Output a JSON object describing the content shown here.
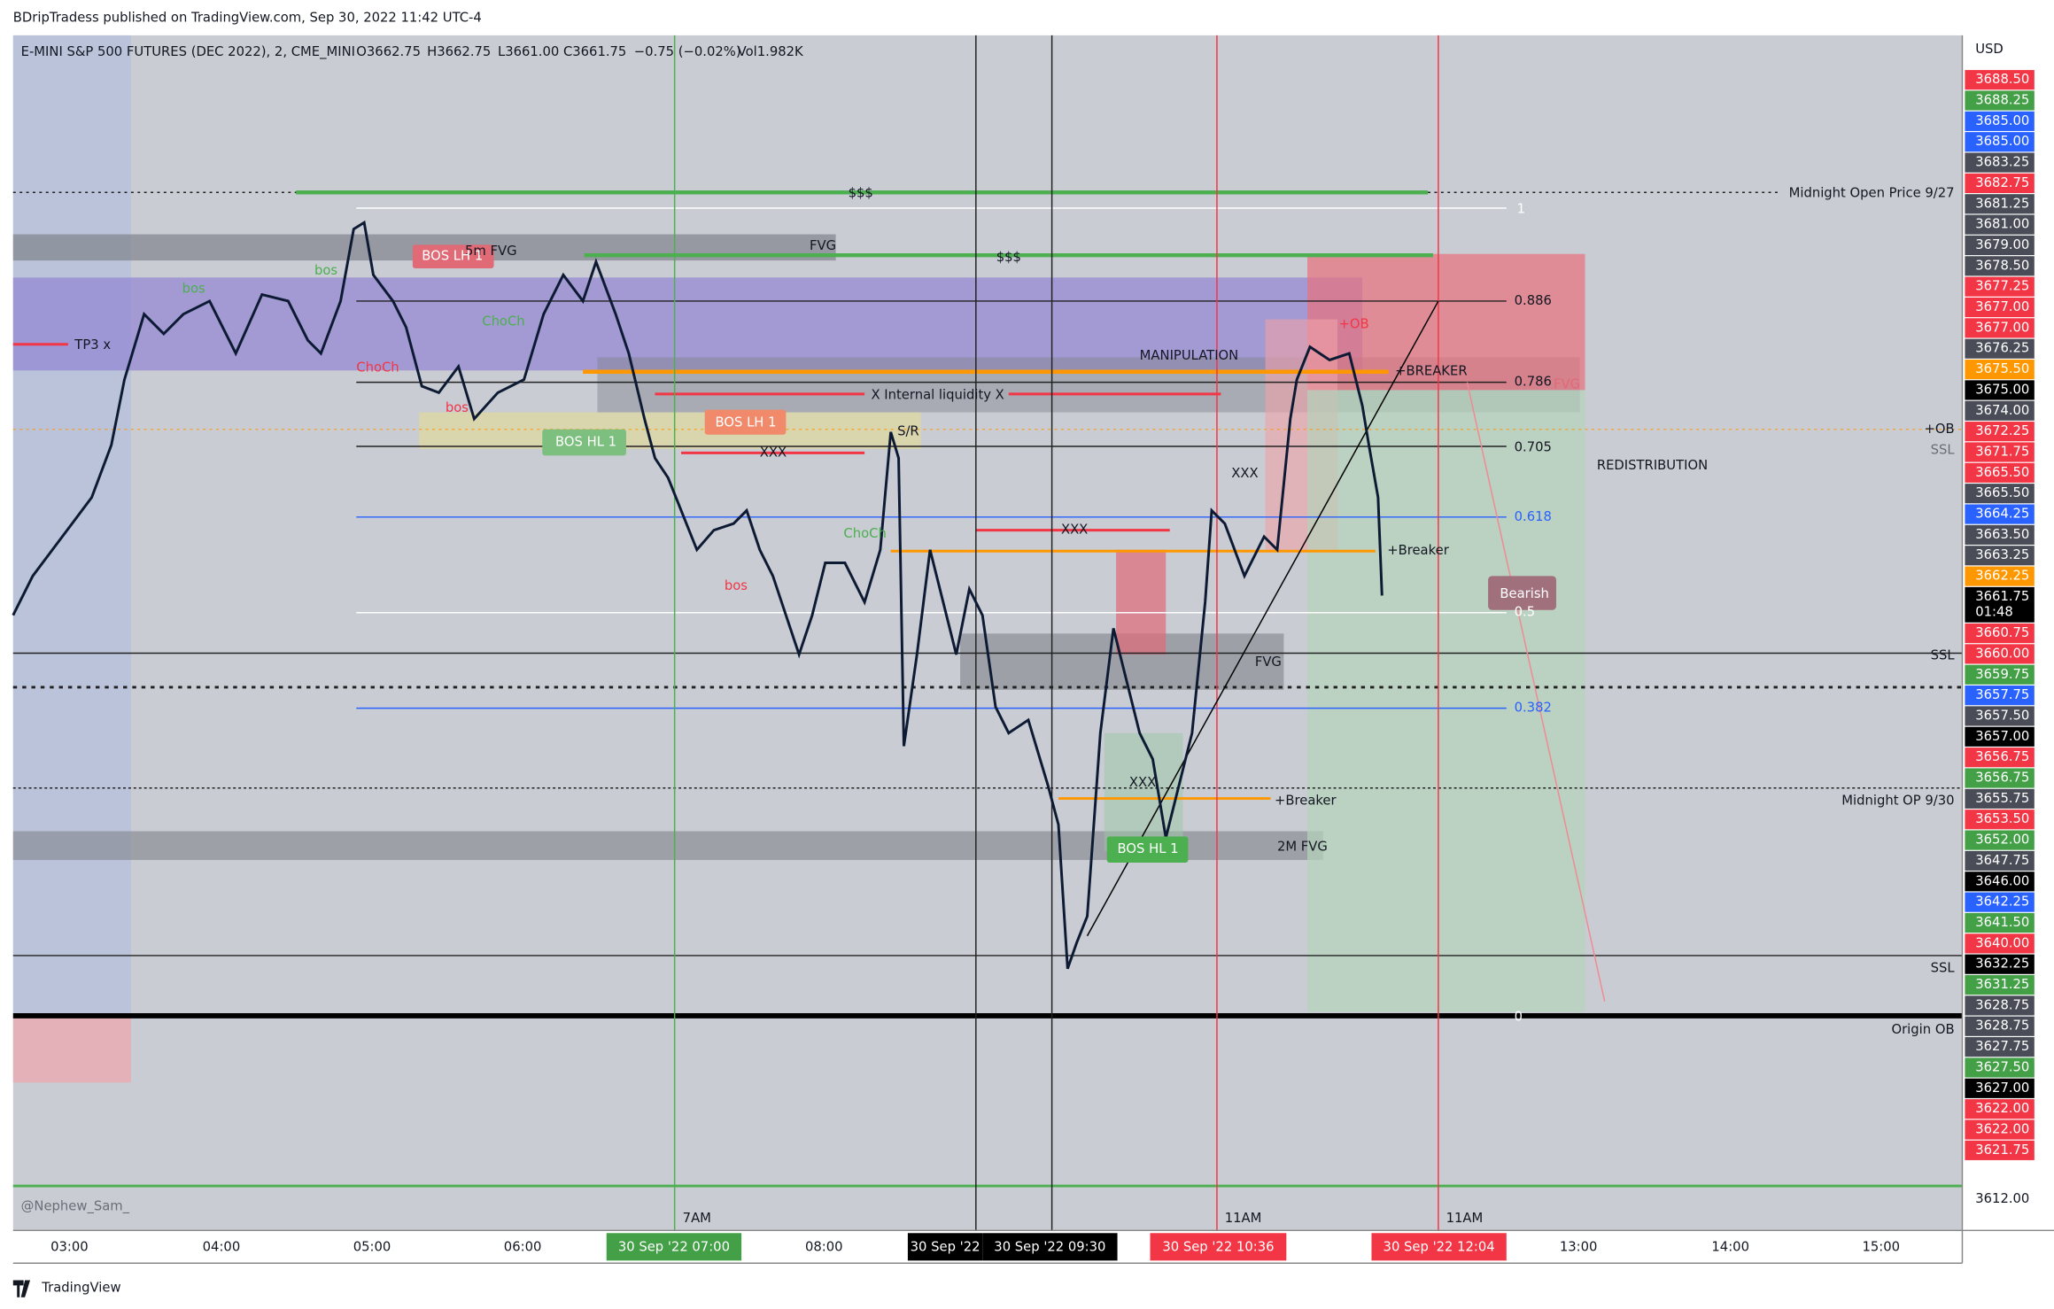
{
  "header": {
    "publisher": "BDripTradess published on TradingView.com, Sep 30, 2022 11:42 UTC-4"
  },
  "legend": {
    "symbol": "E-MINI S&P 500 FUTURES (DEC 2022), 2, CME_MINI",
    "open": "O3662.75",
    "high": "H3662.75",
    "low": "L3661.00",
    "close": "C3661.75",
    "change": "−0.75 (−0.02%)",
    "volume": "Vol1.982K"
  },
  "price_axis": {
    "currency": "USD",
    "countdown": "01:48",
    "bottom_label": "3612.00",
    "labels": [
      {
        "text": "3688.50",
        "color": "red"
      },
      {
        "text": "3688.25",
        "color": "green"
      },
      {
        "text": "3685.00",
        "color": "blue"
      },
      {
        "text": "3685.00",
        "color": "blue"
      },
      {
        "text": "3683.25",
        "color": "gray"
      },
      {
        "text": "3682.75",
        "color": "red"
      },
      {
        "text": "3681.25",
        "color": "gray"
      },
      {
        "text": "3681.00",
        "color": "gray"
      },
      {
        "text": "3679.00",
        "color": "gray"
      },
      {
        "text": "3678.50",
        "color": "gray"
      },
      {
        "text": "3677.25",
        "color": "red"
      },
      {
        "text": "3677.00",
        "color": "red"
      },
      {
        "text": "3677.00",
        "color": "red"
      },
      {
        "text": "3676.25",
        "color": "gray"
      },
      {
        "text": "3675.50",
        "color": "orange"
      },
      {
        "text": "3675.00",
        "color": "black"
      },
      {
        "text": "3674.00",
        "color": "gray"
      },
      {
        "text": "3672.25",
        "color": "red"
      },
      {
        "text": "3671.75",
        "color": "red"
      },
      {
        "text": "3665.50",
        "color": "red"
      },
      {
        "text": "3665.50",
        "color": "gray"
      },
      {
        "text": "3664.25",
        "color": "blue"
      },
      {
        "text": "3663.50",
        "color": "gray"
      },
      {
        "text": "3663.25",
        "color": "gray"
      },
      {
        "text": "3662.25",
        "color": "orange"
      },
      {
        "text": "3661.75",
        "color": "black"
      },
      {
        "text": "3660.75",
        "color": "red"
      },
      {
        "text": "3660.00",
        "color": "red"
      },
      {
        "text": "3659.75",
        "color": "green"
      },
      {
        "text": "3657.75",
        "color": "blue"
      },
      {
        "text": "3657.50",
        "color": "gray"
      },
      {
        "text": "3657.00",
        "color": "black"
      },
      {
        "text": "3656.75",
        "color": "red"
      },
      {
        "text": "3656.75",
        "color": "green"
      },
      {
        "text": "3655.75",
        "color": "gray"
      },
      {
        "text": "3653.50",
        "color": "red"
      },
      {
        "text": "3652.00",
        "color": "green"
      },
      {
        "text": "3647.75",
        "color": "gray"
      },
      {
        "text": "3646.00",
        "color": "black"
      },
      {
        "text": "3642.25",
        "color": "blue"
      },
      {
        "text": "3641.50",
        "color": "green"
      },
      {
        "text": "3640.00",
        "color": "red"
      },
      {
        "text": "3632.25",
        "color": "black"
      },
      {
        "text": "3631.25",
        "color": "green"
      },
      {
        "text": "3628.75",
        "color": "gray"
      },
      {
        "text": "3628.75",
        "color": "gray"
      },
      {
        "text": "3627.75",
        "color": "gray"
      },
      {
        "text": "3627.50",
        "color": "green"
      },
      {
        "text": "3627.00",
        "color": "black"
      },
      {
        "text": "3622.00",
        "color": "red"
      },
      {
        "text": "3622.00",
        "color": "red"
      },
      {
        "text": "3621.75",
        "color": "red"
      }
    ]
  },
  "time_axis": {
    "labels": [
      "03:00",
      "04:00",
      "05:00",
      "06:00",
      "08:00",
      "13:00",
      "14:00",
      "15:00"
    ],
    "session_labels": [
      "7AM",
      "11AM",
      "11AM"
    ],
    "highlights": [
      {
        "text": "30 Sep '22  07:00",
        "color": "green"
      },
      {
        "text": "30 Sep '22",
        "color": "black"
      },
      {
        "text": "30 Sep '22  09:30",
        "color": "black"
      },
      {
        "text": "30 Sep '22  10:36",
        "color": "red"
      },
      {
        "text": "30 Sep '22  12:04",
        "color": "red"
      }
    ]
  },
  "annotations": [
    "$$$",
    "$$$",
    "1",
    "0.886",
    "0.786",
    "0.705",
    "0.618",
    "0.5",
    "0.382",
    "0",
    "5m FVG",
    "FVG",
    "BOS LH 1",
    "TP3 x",
    "MANIPULATION",
    "X Internal liquidity X",
    "+BREAKER",
    "BOS LH 1",
    "BOS HL 1",
    "XXX",
    "S/R",
    "REDISTRIBUTION",
    "XXX",
    "XXX",
    "+Breaker",
    "Bearish",
    "FVG",
    "+Breaker",
    "XXX",
    "BOS HL 1",
    "2M FVG",
    "+OB",
    "FVG",
    "ChoCh",
    "ChoCh",
    "ChoCh",
    "bos",
    "bos",
    "bos",
    "bos",
    "Midnight Open Price 9/27",
    "+OB",
    "SSL",
    "SSL",
    "Midnight OP 9/30",
    "SSL",
    "Origin OB"
  ],
  "watermark": "@Nephew_Sam_",
  "footer": "TradingView"
}
